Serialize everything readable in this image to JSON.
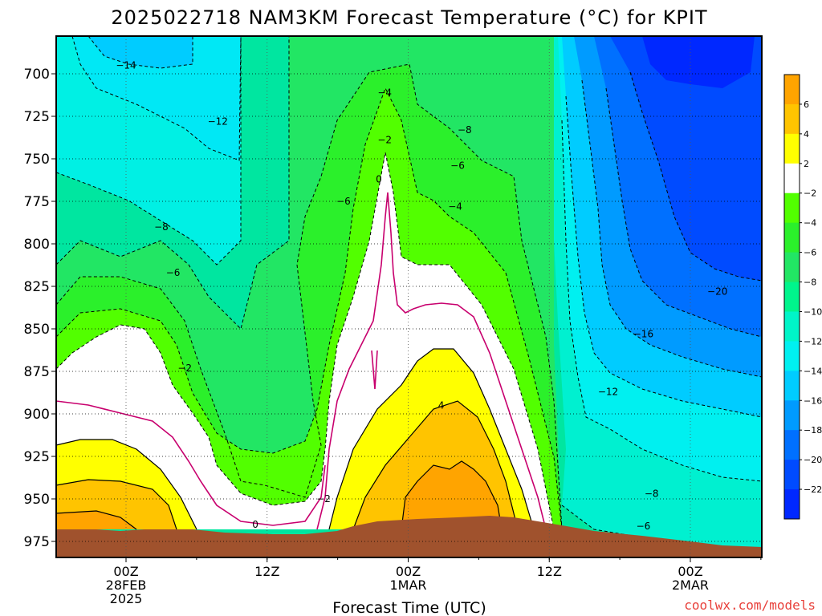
{
  "title": "2025022718 NAM3KM Forecast Temperature (°C) for KPIT",
  "credit": "coolwx.com/models",
  "colors": {
    "ground": "#a0522d",
    "frame": "#000000",
    "credit": "#e8403a"
  },
  "chart_data": {
    "type": "heatmap",
    "title": "2025022718 NAM3KM Forecast Temperature (°C) for KPIT",
    "xlabel": "Forecast Time (UTC)",
    "ylabel": "",
    "x_range_hours": [
      -6,
      54
    ],
    "ylim_hpa": [
      980,
      680
    ],
    "y_ticks": [
      700,
      725,
      750,
      775,
      800,
      825,
      850,
      875,
      900,
      925,
      950,
      975
    ],
    "y_axis": "pressure (hPa), decreasing upward",
    "x_ticks": [
      {
        "hour": 0,
        "lines": [
          "00Z",
          "28FEB",
          "2025"
        ]
      },
      {
        "hour": 12,
        "lines": [
          "12Z"
        ]
      },
      {
        "hour": 24,
        "lines": [
          "00Z",
          "1MAR"
        ]
      },
      {
        "hour": 36,
        "lines": [
          "12Z"
        ]
      },
      {
        "hour": 48,
        "lines": [
          "00Z",
          "2MAR"
        ]
      }
    ],
    "grid": true,
    "colorbar": {
      "placement": "right",
      "labels": [
        6,
        4,
        2,
        -2,
        -4,
        -6,
        -8,
        -10,
        -12,
        -14,
        -16,
        -18,
        -20,
        -22
      ],
      "bins": [
        {
          "max": 8,
          "min": 6,
          "color": "#ffa400"
        },
        {
          "max": 6,
          "min": 4,
          "color": "#ffc400"
        },
        {
          "max": 4,
          "min": 2,
          "color": "#ffff00"
        },
        {
          "max": 2,
          "min": -2,
          "color": "#ffffff"
        },
        {
          "max": -2,
          "min": -4,
          "color": "#52ff00"
        },
        {
          "max": -4,
          "min": -6,
          "color": "#2bf02b"
        },
        {
          "max": -6,
          "min": -8,
          "color": "#22e664"
        },
        {
          "max": -8,
          "min": -10,
          "color": "#00f58c"
        },
        {
          "max": -10,
          "min": -12,
          "color": "#00f5c8"
        },
        {
          "max": -12,
          "min": -14,
          "color": "#00f0f0"
        },
        {
          "max": -14,
          "min": -16,
          "color": "#00ccff"
        },
        {
          "max": -16,
          "min": -18,
          "color": "#009bff"
        },
        {
          "max": -18,
          "min": -20,
          "color": "#0070ff"
        },
        {
          "max": -20,
          "min": -22,
          "color": "#004bff"
        },
        {
          "max": -22,
          "min": -24,
          "color": "#0028ff"
        }
      ]
    },
    "contour_labels": [
      {
        "text": "-14",
        "hour": 0.0,
        "p": 695
      },
      {
        "text": "-12",
        "hour": 7.8,
        "p": 728
      },
      {
        "text": "-8",
        "hour": 3.0,
        "p": 790
      },
      {
        "text": "-6",
        "hour": 4.0,
        "p": 817
      },
      {
        "text": "-2",
        "hour": 5.0,
        "p": 873
      },
      {
        "text": "-4",
        "hour": 22.0,
        "p": 711
      },
      {
        "text": "-2",
        "hour": 22.0,
        "p": 739
      },
      {
        "text": "0",
        "hour": 21.5,
        "p": 762
      },
      {
        "text": "-6",
        "hour": 18.5,
        "p": 775
      },
      {
        "text": "-8",
        "hour": 28.8,
        "p": 733
      },
      {
        "text": "-6",
        "hour": 28.2,
        "p": 754
      },
      {
        "text": "-4",
        "hour": 28.0,
        "p": 778
      },
      {
        "text": "4",
        "hour": 26.8,
        "p": 895
      },
      {
        "text": "-2",
        "hour": 16.8,
        "p": 950
      },
      {
        "text": "0",
        "hour": 11.0,
        "p": 965
      },
      {
        "text": "-20",
        "hour": 50.3,
        "p": 828
      },
      {
        "text": "-16",
        "hour": 44.0,
        "p": 853
      },
      {
        "text": "-12",
        "hour": 41.0,
        "p": 887
      },
      {
        "text": "-8",
        "hour": 44.7,
        "p": 947
      },
      {
        "text": "-6",
        "hour": 44.0,
        "p": 966
      }
    ]
  }
}
